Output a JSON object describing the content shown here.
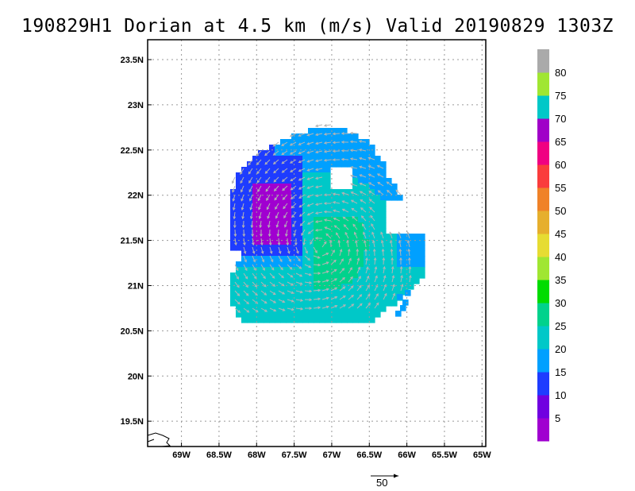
{
  "title": "190829H1 Dorian at 4.5 km (m/s) Valid 20190829  1303Z",
  "lat_labels": [
    "23.5N",
    "23N",
    "22.5N",
    "22N",
    "21.5N",
    "21N",
    "20.5N",
    "20N",
    "19.5N"
  ],
  "lon_labels": [
    "69W",
    "68.5W",
    "68W",
    "67.5W",
    "67W",
    "66.5W",
    "66W",
    "65.5W",
    "65W"
  ],
  "colorbar": {
    "labels": [
      "5",
      "10",
      "15",
      "20",
      "25",
      "30",
      "35",
      "40",
      "45",
      "50",
      "55",
      "60",
      "65",
      "70",
      "75",
      "80"
    ],
    "colors": [
      "#a000d0",
      "#7000e0",
      "#1e3cff",
      "#00a0ff",
      "#00c8c8",
      "#00d28c",
      "#00dc00",
      "#a0e632",
      "#e6dc32",
      "#e6af2d",
      "#f08228",
      "#fa3c3c",
      "#f00082",
      "#a000c8",
      "#00c8c8",
      "#a0e632",
      "#aaaaaa"
    ]
  },
  "reference_vector": {
    "label": "50"
  },
  "storm": {
    "center_lat": 21.45,
    "center_lon": -67.15
  }
}
